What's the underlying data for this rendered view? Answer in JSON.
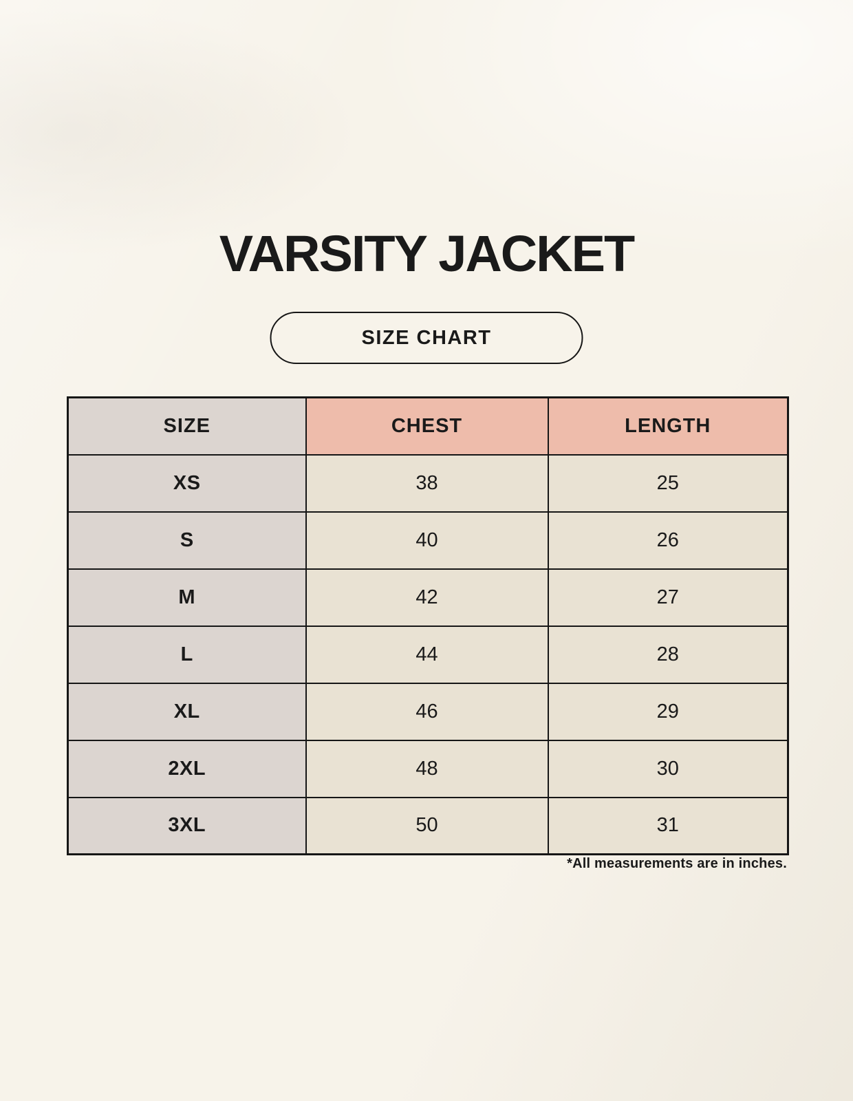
{
  "header": {
    "title": "VARSITY JACKET",
    "badge_label": "SIZE CHART"
  },
  "chart_data": {
    "type": "table",
    "title": "VARSITY JACKET",
    "subtitle": "SIZE CHART",
    "columns": [
      "SIZE",
      "CHEST",
      "LENGTH"
    ],
    "rows": [
      [
        "XS",
        "38",
        "25"
      ],
      [
        "S",
        "40",
        "26"
      ],
      [
        "M",
        "42",
        "27"
      ],
      [
        "L",
        "44",
        "28"
      ],
      [
        "XL",
        "46",
        "29"
      ],
      [
        "2XL",
        "48",
        "30"
      ],
      [
        "3XL",
        "50",
        "31"
      ]
    ],
    "units": "inches"
  },
  "footer": {
    "note": "*All measurements are in inches."
  },
  "colors": {
    "background": "#f7f3ea",
    "size_column_bg": "#dcd5d0",
    "measure_header_bg": "#eebcab",
    "data_cell_bg": "#e9e2d3",
    "border": "#161616",
    "text": "#1a1a1a"
  }
}
